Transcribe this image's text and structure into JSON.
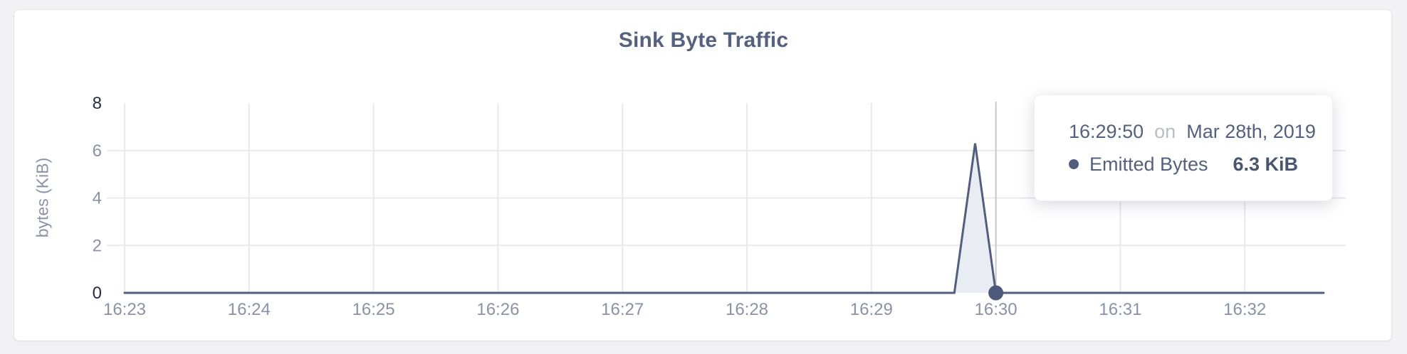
{
  "card": {
    "title": "Sink Byte Traffic"
  },
  "colors": {
    "page_background": "#f2f2f4",
    "card_background": "#ffffff",
    "title": "#55617f",
    "grid": "#e8e9ec",
    "crosshair": "#c7c9cc",
    "tick_gray": "#8a92a6",
    "tick_dark": "#272d44",
    "series_line": "#525e7d",
    "series_fill": "#eaecf3",
    "marker": "#4d5978"
  },
  "chart_data": {
    "type": "area",
    "title": "Sink Byte Traffic",
    "xlabel": "",
    "ylabel": "bytes (KiB)",
    "x_ticks": [
      "16:23",
      "16:24",
      "16:25",
      "16:26",
      "16:27",
      "16:28",
      "16:29",
      "16:30",
      "16:31",
      "16:32"
    ],
    "y_ticks": [
      0,
      2,
      4,
      6,
      8
    ],
    "ylim": [
      0,
      8
    ],
    "x_start": "16:23:00",
    "x_end": "16:32:38",
    "grid": true,
    "legend_position": "none",
    "series": [
      {
        "name": "Emitted Bytes",
        "points": [
          {
            "t": "16:23:00",
            "v": 0
          },
          {
            "t": "16:29:40",
            "v": 0
          },
          {
            "t": "16:29:50",
            "v": 6.3
          },
          {
            "t": "16:30:00",
            "v": 0
          },
          {
            "t": "16:32:38",
            "v": 0
          }
        ]
      }
    ],
    "cursor": {
      "time": "16:30:00",
      "value": 0
    }
  },
  "tooltip": {
    "time": "16:29:50",
    "conjunction": "on",
    "date": "Mar 28th, 2019",
    "series_label": "Emitted Bytes",
    "value": "6.3 KiB"
  }
}
